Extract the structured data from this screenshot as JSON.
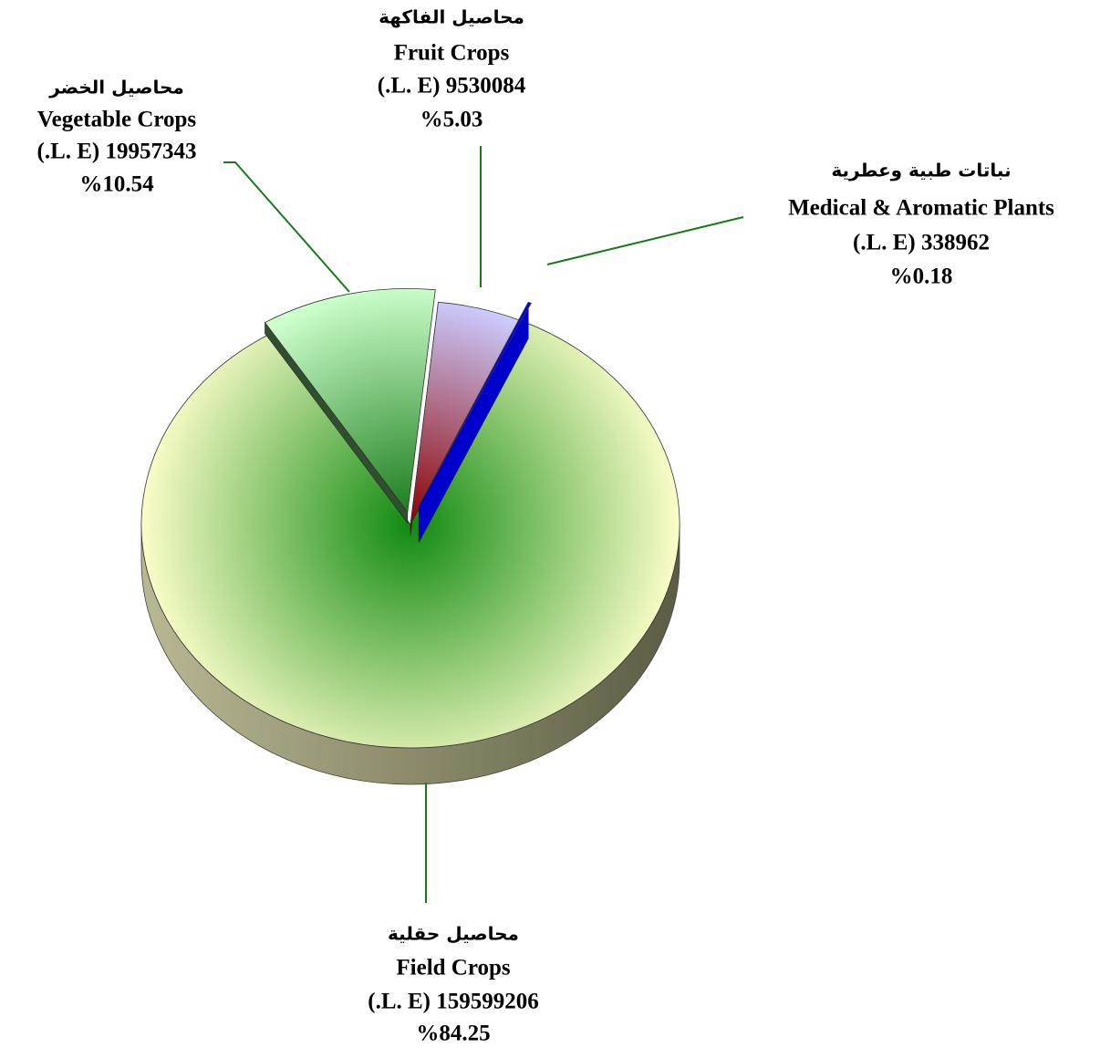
{
  "chart_data": {
    "type": "pie",
    "categories": [
      "Field Crops",
      "Vegetable Crops",
      "Fruit Crops",
      "Medical & Aromatic Plants"
    ],
    "arabic_names": [
      "محاصيل حقلية",
      "محاصيل الخضر",
      "محاصيل الفاكهة",
      "نباتات طبية وعطرية"
    ],
    "values": [
      159599206,
      19957343,
      9530084,
      338962
    ],
    "value_labels": [
      "(.L. E) 159599206",
      "(.L. E) 19957343",
      "(.L. E) 9530084",
      "(.L. E) 338962"
    ],
    "percents": [
      84.25,
      10.54,
      5.03,
      0.18
    ],
    "percent_labels": [
      "%84.25",
      "%10.54",
      "%5.03",
      "%0.18"
    ],
    "colors": [
      "#ffffcc",
      "#ccffcc",
      "#ccccff",
      "#0000ff"
    ]
  }
}
